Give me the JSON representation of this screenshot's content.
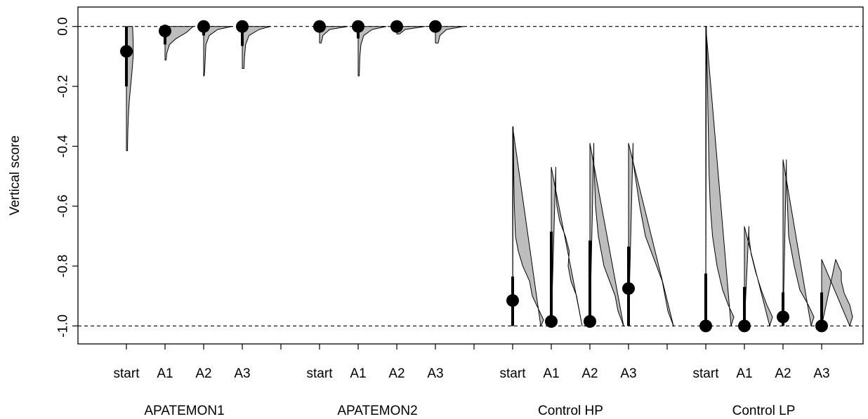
{
  "chart_data": {
    "type": "violin",
    "ylabel": "Vertical score",
    "ylim": [
      -1.06,
      0.065
    ],
    "yticks": [
      "0.0",
      "-0.2",
      "-0.4",
      "-0.6",
      "-0.8",
      "-1.0"
    ],
    "reference_lines": [
      0.0,
      -1.0
    ],
    "groups": [
      {
        "name": "APATEMON1",
        "categories": [
          {
            "label": "start",
            "point": -0.083,
            "range": [
              -0.2,
              0.0
            ],
            "violin": {
              "min": -0.415,
              "max": 0.0,
              "shape": [
                [
                  0.0,
                  0.11
                ],
                [
                  -0.05,
                  0.12
                ],
                [
                  -0.1,
                  0.12
                ],
                [
                  -0.15,
                  0.1
                ],
                [
                  -0.2,
                  0.075
                ],
                [
                  -0.25,
                  0.05
                ],
                [
                  -0.3,
                  0.035
                ],
                [
                  -0.35,
                  0.025
                ],
                [
                  -0.4,
                  0.02
                ],
                [
                  -0.415,
                  0.02
                ]
              ]
            }
          },
          {
            "label": "A1",
            "point": -0.015,
            "range": [
              -0.06,
              0.0
            ],
            "violin": {
              "min": -0.112,
              "max": 0.0,
              "shape": [
                [
                  0.0,
                  0.5
                ],
                [
                  -0.02,
                  0.38
                ],
                [
                  -0.04,
                  0.2
                ],
                [
                  -0.06,
                  0.08
                ],
                [
                  -0.09,
                  0.03
                ],
                [
                  -0.112,
                  0.02
                ]
              ]
            }
          },
          {
            "label": "A2",
            "point": 0.0,
            "range": [
              -0.03,
              0.0
            ],
            "violin": {
              "min": -0.165,
              "max": 0.0,
              "shape": [
                [
                  0.0,
                  0.5
                ],
                [
                  -0.01,
                  0.25
                ],
                [
                  -0.03,
                  0.1
                ],
                [
                  -0.06,
                  0.04
                ],
                [
                  -0.1,
                  0.03
                ],
                [
                  -0.14,
                  0.02
                ],
                [
                  -0.165,
                  0.01
                ]
              ]
            }
          },
          {
            "label": "A3",
            "point": 0.0,
            "range": [
              -0.065,
              0.0
            ],
            "violin": {
              "min": -0.14,
              "max": 0.0,
              "shape": [
                [
                  0.0,
                  0.5
                ],
                [
                  -0.01,
                  0.3
                ],
                [
                  -0.03,
                  0.12
                ],
                [
                  -0.06,
                  0.06
                ],
                [
                  -0.1,
                  0.04
                ],
                [
                  -0.14,
                  0.03
                ]
              ]
            }
          }
        ]
      },
      {
        "name": "APATEMON2",
        "categories": [
          {
            "label": "start",
            "point": 0.0,
            "range": [
              0.0,
              0.0
            ],
            "violin": {
              "min": -0.055,
              "max": 0.0,
              "shape": [
                [
                  0.0,
                  0.5
                ],
                [
                  -0.01,
                  0.18
                ],
                [
                  -0.03,
                  0.06
                ],
                [
                  -0.055,
                  0.03
                ]
              ]
            }
          },
          {
            "label": "A1",
            "point": 0.0,
            "range": [
              -0.04,
              0.0
            ],
            "violin": {
              "min": -0.165,
              "max": 0.0,
              "shape": [
                [
                  0.0,
                  0.5
                ],
                [
                  -0.01,
                  0.25
                ],
                [
                  -0.03,
                  0.1
                ],
                [
                  -0.06,
                  0.05
                ],
                [
                  -0.1,
                  0.03
                ],
                [
                  -0.165,
                  0.02
                ]
              ]
            }
          },
          {
            "label": "A2",
            "point": 0.0,
            "range": [
              0.0,
              0.0
            ],
            "violin": {
              "min": -0.025,
              "max": 0.0,
              "shape": [
                [
                  0.0,
                  0.5
                ],
                [
                  -0.01,
                  0.15
                ],
                [
                  -0.025,
                  0.05
                ]
              ]
            }
          },
          {
            "label": "A3",
            "point": 0.0,
            "range": [
              0.0,
              0.0
            ],
            "violin": {
              "min": -0.055,
              "max": 0.0,
              "shape": [
                [
                  0.0,
                  0.5
                ],
                [
                  -0.01,
                  0.2
                ],
                [
                  -0.03,
                  0.08
                ],
                [
                  -0.055,
                  0.05
                ]
              ]
            }
          }
        ]
      },
      {
        "name": "Control HP",
        "categories": [
          {
            "label": "start",
            "point": -0.915,
            "range": [
              -1.0,
              -0.835
            ],
            "violin": {
              "min": -1.0,
              "max": -0.335,
              "shape": [
                [
                  -1.0,
                  0.5
                ],
                [
                  -0.98,
                  0.55
                ],
                [
                  -0.94,
                  0.45
                ],
                [
                  -0.9,
                  0.35
                ],
                [
                  -0.85,
                  0.3
                ],
                [
                  -0.8,
                  0.18
                ],
                [
                  -0.75,
                  0.1
                ],
                [
                  -0.7,
                  0.05
                ],
                [
                  -0.6,
                  0.03
                ],
                [
                  -0.5,
                  0.02
                ],
                [
                  -0.4,
                  0.015
                ],
                [
                  -0.335,
                  0.01
                ]
              ]
            }
          },
          {
            "label": "A1",
            "point": -0.985,
            "range": [
              -1.0,
              -0.685
            ],
            "violin": {
              "min": -1.0,
              "max": -0.47,
              "shape": [
                [
                  -1.0,
                  0.55
                ],
                [
                  -0.95,
                  0.5
                ],
                [
                  -0.9,
                  0.45
                ],
                [
                  -0.85,
                  0.35
                ],
                [
                  -0.8,
                  0.3
                ],
                [
                  -0.75,
                  0.32
                ],
                [
                  -0.7,
                  0.25
                ],
                [
                  -0.65,
                  0.15
                ],
                [
                  -0.6,
                  0.1
                ],
                [
                  -0.55,
                  0.08
                ],
                [
                  -0.5,
                  0.08
                ],
                [
                  -0.47,
                  0.08
                ]
              ]
            }
          },
          {
            "label": "A2",
            "point": -0.985,
            "range": [
              -1.0,
              -0.715
            ],
            "violin": {
              "min": -1.0,
              "max": -0.39,
              "shape": [
                [
                  -1.0,
                  0.6
                ],
                [
                  -0.95,
                  0.5
                ],
                [
                  -0.9,
                  0.45
                ],
                [
                  -0.85,
                  0.35
                ],
                [
                  -0.8,
                  0.25
                ],
                [
                  -0.75,
                  0.2
                ],
                [
                  -0.7,
                  0.15
                ],
                [
                  -0.6,
                  0.1
                ],
                [
                  -0.5,
                  0.08
                ],
                [
                  -0.45,
                  0.07
                ],
                [
                  -0.39,
                  0.07
                ]
              ]
            }
          },
          {
            "label": "A3",
            "point": -0.875,
            "range": [
              -1.0,
              -0.735
            ],
            "violin": {
              "min": -1.0,
              "max": -0.39,
              "shape": [
                [
                  -1.0,
                  0.8
                ],
                [
                  -0.95,
                  0.7
                ],
                [
                  -0.9,
                  0.65
                ],
                [
                  -0.85,
                  0.6
                ],
                [
                  -0.8,
                  0.5
                ],
                [
                  -0.75,
                  0.4
                ],
                [
                  -0.7,
                  0.3
                ],
                [
                  -0.6,
                  0.2
                ],
                [
                  -0.5,
                  0.12
                ],
                [
                  -0.45,
                  0.08
                ],
                [
                  -0.39,
                  0.08
                ]
              ]
            }
          }
        ]
      },
      {
        "name": "Control LP",
        "categories": [
          {
            "label": "start",
            "point": -1.0,
            "range": [
              -1.0,
              -0.825
            ],
            "violin": {
              "min": -1.0,
              "max": 0.0,
              "shape": [
                [
                  -1.0,
                  0.45
                ],
                [
                  -0.97,
                  0.5
                ],
                [
                  -0.93,
                  0.4
                ],
                [
                  -0.88,
                  0.3
                ],
                [
                  -0.8,
                  0.2
                ],
                [
                  -0.7,
                  0.12
                ],
                [
                  -0.6,
                  0.08
                ],
                [
                  -0.5,
                  0.06
                ],
                [
                  -0.4,
                  0.05
                ],
                [
                  -0.3,
                  0.04
                ],
                [
                  -0.2,
                  0.03
                ],
                [
                  -0.1,
                  0.02
                ],
                [
                  0.0,
                  0.01
                ]
              ]
            }
          },
          {
            "label": "A1",
            "point": -1.0,
            "range": [
              -1.0,
              -0.87
            ],
            "violin": {
              "min": -1.0,
              "max": -0.668,
              "shape": [
                [
                  -1.0,
                  0.45
                ],
                [
                  -0.97,
                  0.5
                ],
                [
                  -0.93,
                  0.4
                ],
                [
                  -0.88,
                  0.3
                ],
                [
                  -0.82,
                  0.2
                ],
                [
                  -0.76,
                  0.12
                ],
                [
                  -0.7,
                  0.08
                ],
                [
                  -0.668,
                  0.08
                ]
              ]
            }
          },
          {
            "label": "A2",
            "point": -0.97,
            "range": [
              -1.0,
              -0.888
            ],
            "violin": {
              "min": -1.0,
              "max": -0.445,
              "shape": [
                [
                  -1.0,
                  0.5
                ],
                [
                  -0.97,
                  0.55
                ],
                [
                  -0.93,
                  0.45
                ],
                [
                  -0.88,
                  0.3
                ],
                [
                  -0.8,
                  0.2
                ],
                [
                  -0.75,
                  0.15
                ],
                [
                  -0.7,
                  0.1
                ],
                [
                  -0.6,
                  0.08
                ],
                [
                  -0.5,
                  0.06
                ],
                [
                  -0.445,
                  0.06
                ]
              ]
            }
          },
          {
            "label": "A3",
            "point": -1.0,
            "range": [
              -1.0,
              -0.888
            ],
            "violin": {
              "min": -1.0,
              "max": -0.778,
              "shape": [
                [
                  -1.0,
                  0.5
                ],
                [
                  -0.97,
                  0.55
                ],
                [
                  -0.93,
                  0.5
                ],
                [
                  -0.89,
                  0.4
                ],
                [
                  -0.85,
                  0.35
                ],
                [
                  -0.82,
                  0.35
                ],
                [
                  -0.8,
                  0.3
                ],
                [
                  -0.778,
                  0.25
                ]
              ]
            }
          }
        ]
      }
    ]
  }
}
